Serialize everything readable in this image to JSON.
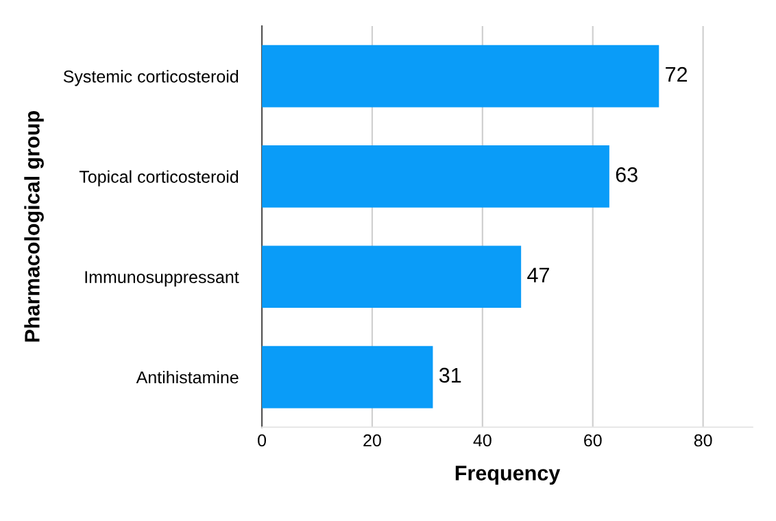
{
  "chart_data": {
    "type": "bar",
    "orientation": "horizontal",
    "categories": [
      "Systemic corticosteroid",
      "Topical corticosteroid",
      "Immunosuppressant",
      "Antihistamine"
    ],
    "values": [
      72,
      63,
      47,
      31
    ],
    "color": "#0a9cf8",
    "xlabel": "Frequency",
    "ylabel": "Pharmacological group",
    "xlim": [
      0,
      89
    ],
    "xticks": [
      0,
      20,
      40,
      60,
      80
    ],
    "grid": "x",
    "data_labels": true
  }
}
